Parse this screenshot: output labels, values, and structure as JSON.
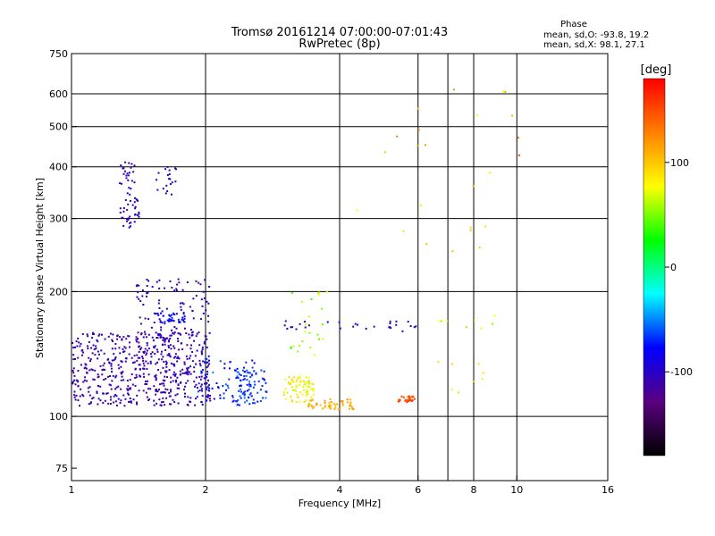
{
  "chart_data": {
    "type": "scatter",
    "title": "Tromsø 20161214 07:00:00-07:01:43",
    "subtitle": "RwPretec (8p)",
    "xlabel": "Frequency [MHz]",
    "ylabel": "Stationary phase Virtual Height [km]",
    "x_scale": "log",
    "y_scale": "log",
    "xlim": [
      1,
      16
    ],
    "ylim": [
      70,
      750
    ],
    "x_ticks": [
      1,
      2,
      4,
      6,
      8,
      10,
      16
    ],
    "x_tick_labels": [
      "1",
      "2",
      "4",
      "6",
      "8",
      "10",
      "16"
    ],
    "x_gridlines": [
      2,
      4,
      6,
      7,
      8,
      10
    ],
    "y_ticks": [
      75,
      100,
      200,
      300,
      400,
      500,
      600,
      750
    ],
    "y_tick_labels": [
      "75",
      "100",
      "200",
      "300",
      "400",
      "500",
      "600",
      "750"
    ],
    "y_gridlines": [
      100,
      200,
      300,
      400,
      500,
      600
    ],
    "grid": true,
    "phase_box": {
      "title": "Phase",
      "line1": "mean, sd,O: -93.8, 19.2",
      "line2": "mean, sd,X:  98.1, 27.1"
    },
    "colorbar": {
      "label": "[deg]",
      "range": [
        -180,
        180
      ],
      "ticks": [
        100,
        0,
        -100
      ],
      "tick_labels": [
        "100",
        "0",
        "-100"
      ],
      "stops": [
        "#000000",
        "#5a0080",
        "#0000ff",
        "#00ffff",
        "#00ff00",
        "#ffff00",
        "#ff8000",
        "#ff0000"
      ]
    },
    "clusters": [
      {
        "name": "o-trace-low",
        "xmin": 1.0,
        "xmax": 2.05,
        "ymin": 106,
        "ymax": 160,
        "count": 520,
        "phase": -110,
        "phase_sd": 12
      },
      {
        "name": "o-trace-mid",
        "xmin": 1.4,
        "xmax": 2.05,
        "ymin": 120,
        "ymax": 215,
        "count": 160,
        "phase": -105,
        "phase_sd": 15
      },
      {
        "name": "o-trace-band",
        "xmin": 1.55,
        "xmax": 1.8,
        "ymin": 168,
        "ymax": 178,
        "count": 35,
        "phase": -80,
        "phase_sd": 20
      },
      {
        "name": "cyan-mix",
        "xmin": 1.9,
        "xmax": 2.6,
        "ymin": 108,
        "ymax": 140,
        "count": 80,
        "phase": -70,
        "phase_sd": 15
      },
      {
        "name": "cyan-band",
        "xmin": 2.35,
        "xmax": 2.75,
        "ymin": 106,
        "ymax": 130,
        "count": 60,
        "phase": -65,
        "phase_sd": 12
      },
      {
        "name": "f-layer-blue",
        "xmin": 1.28,
        "xmax": 1.42,
        "ymin": 285,
        "ymax": 410,
        "count": 60,
        "phase": -105,
        "phase_sd": 10
      },
      {
        "name": "f-layer-blue-2",
        "xmin": 1.55,
        "xmax": 1.72,
        "ymin": 330,
        "ymax": 400,
        "count": 20,
        "phase": -100,
        "phase_sd": 10
      },
      {
        "name": "x-trace-yellow",
        "xmin": 3.0,
        "xmax": 3.5,
        "ymin": 108,
        "ymax": 125,
        "count": 70,
        "phase": 80,
        "phase_sd": 18
      },
      {
        "name": "x-trace-orange",
        "xmin": 3.4,
        "xmax": 4.3,
        "ymin": 104,
        "ymax": 110,
        "count": 50,
        "phase": 110,
        "phase_sd": 15
      },
      {
        "name": "x-trace-red",
        "xmin": 5.4,
        "xmax": 5.9,
        "ymin": 108,
        "ymax": 112,
        "count": 30,
        "phase": 150,
        "phase_sd": 10
      },
      {
        "name": "x-trace-mid",
        "xmin": 3.1,
        "xmax": 3.8,
        "ymin": 140,
        "ymax": 200,
        "count": 25,
        "phase": 60,
        "phase_sd": 25
      },
      {
        "name": "o-blue-ext",
        "xmin": 3.0,
        "xmax": 6.0,
        "ymin": 160,
        "ymax": 170,
        "count": 30,
        "phase": -100,
        "phase_sd": 15
      },
      {
        "name": "sparse-high",
        "xmin": 4.2,
        "xmax": 10.2,
        "ymin": 250,
        "ymax": 620,
        "count": 24,
        "phase": 110,
        "phase_sd": 30
      },
      {
        "name": "sparse-low",
        "xmin": 6.2,
        "xmax": 9.2,
        "ymin": 108,
        "ymax": 180,
        "count": 16,
        "phase": 80,
        "phase_sd": 30
      }
    ]
  }
}
